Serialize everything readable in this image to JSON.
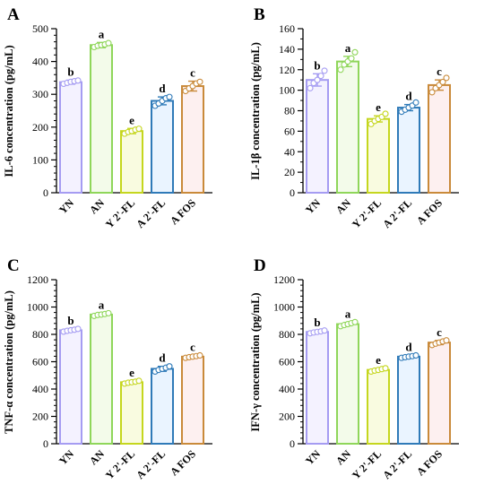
{
  "chart_data": [
    {
      "type": "bar",
      "panel": "A",
      "ylabel": "IL-6 concentration (pg/mL)",
      "categories": [
        "YN",
        "AN",
        "Y 2'-FL",
        "A 2'-FL",
        "A FOS"
      ],
      "values": [
        337,
        450,
        188,
        280,
        325
      ],
      "errors": [
        6,
        8,
        8,
        12,
        15
      ],
      "letters": [
        "b",
        "a",
        "e",
        "d",
        "c"
      ],
      "points": [
        [
          332,
          335,
          338,
          340,
          342
        ],
        [
          444,
          448,
          450,
          452,
          456
        ],
        [
          180,
          185,
          188,
          192,
          195
        ],
        [
          265,
          272,
          280,
          288,
          292
        ],
        [
          310,
          318,
          325,
          333,
          338
        ]
      ],
      "ylim": [
        0,
        500
      ],
      "yticks": [
        0,
        100,
        200,
        300,
        400,
        500
      ],
      "minor_step": 20,
      "colors": [
        "#a59cf2",
        "#8fd65a",
        "#c5d61e",
        "#2f7ab8",
        "#c98a3a"
      ],
      "fills": [
        "#f4f2ff",
        "#f3fbea",
        "#f9fbe0",
        "#eaf4ff",
        "#fdf0f0"
      ]
    },
    {
      "type": "bar",
      "panel": "B",
      "ylabel": "IL-1β concentration (pg/mL)",
      "categories": [
        "YN",
        "AN",
        "Y 2'-FL",
        "A 2'-FL",
        "A FOS"
      ],
      "values": [
        110,
        128,
        72,
        83,
        105
      ],
      "errors": [
        6,
        5,
        3,
        3,
        5
      ],
      "letters": [
        "b",
        "a",
        "e",
        "d",
        "c"
      ],
      "points": [
        [
          102,
          107,
          110,
          114,
          119
        ],
        [
          120,
          125,
          128,
          131,
          137
        ],
        [
          67,
          70,
          72,
          74,
          77
        ],
        [
          79,
          81,
          83,
          85,
          88
        ],
        [
          98,
          102,
          105,
          108,
          112
        ]
      ],
      "ylim": [
        0,
        160
      ],
      "yticks": [
        0,
        20,
        40,
        60,
        80,
        100,
        120,
        140,
        160
      ],
      "minor_step": 10,
      "colors": [
        "#a59cf2",
        "#8fd65a",
        "#c5d61e",
        "#2f7ab8",
        "#c98a3a"
      ],
      "fills": [
        "#f4f2ff",
        "#f3fbea",
        "#f9fbe0",
        "#eaf4ff",
        "#fdf0f0"
      ]
    },
    {
      "type": "bar",
      "panel": "C",
      "ylabel": "TNF-α concentration (pg/mL)",
      "categories": [
        "YN",
        "AN",
        "Y 2'-FL",
        "A 2'-FL",
        "A FOS"
      ],
      "values": [
        830,
        945,
        450,
        548,
        637
      ],
      "errors": [
        8,
        8,
        10,
        18,
        8
      ],
      "letters": [
        "b",
        "a",
        "e",
        "d",
        "c"
      ],
      "points": [
        [
          820,
          826,
          830,
          834,
          840
        ],
        [
          935,
          942,
          945,
          949,
          955
        ],
        [
          440,
          446,
          450,
          454,
          460
        ],
        [
          528,
          540,
          548,
          556,
          566
        ],
        [
          628,
          633,
          637,
          641,
          646
        ]
      ],
      "ylim": [
        0,
        1200
      ],
      "yticks": [
        0,
        200,
        400,
        600,
        800,
        1000,
        1200
      ],
      "minor_step": 40,
      "colors": [
        "#a59cf2",
        "#8fd65a",
        "#c5d61e",
        "#2f7ab8",
        "#c98a3a"
      ],
      "fills": [
        "#f4f2ff",
        "#f3fbea",
        "#f9fbe0",
        "#eaf4ff",
        "#fdf0f0"
      ]
    },
    {
      "type": "bar",
      "panel": "D",
      "ylabel": "IFN-γ concentration (pg/mL)",
      "categories": [
        "YN",
        "AN",
        "Y 2'-FL",
        "A 2'-FL",
        "A FOS"
      ],
      "values": [
        818,
        875,
        540,
        637,
        740
      ],
      "errors": [
        8,
        12,
        10,
        8,
        15
      ],
      "letters": [
        "b",
        "a",
        "e",
        "d",
        "c"
      ],
      "points": [
        [
          808,
          814,
          818,
          822,
          828
        ],
        [
          860,
          868,
          875,
          882,
          890
        ],
        [
          528,
          535,
          540,
          546,
          552
        ],
        [
          628,
          633,
          637,
          641,
          646
        ],
        [
          722,
          732,
          740,
          748,
          756
        ]
      ],
      "ylim": [
        0,
        1200
      ],
      "yticks": [
        0,
        200,
        400,
        600,
        800,
        1000,
        1200
      ],
      "minor_step": 40,
      "colors": [
        "#a59cf2",
        "#8fd65a",
        "#c5d61e",
        "#2f7ab8",
        "#c98a3a"
      ],
      "fills": [
        "#f4f2ff",
        "#f3fbea",
        "#f9fbe0",
        "#eaf4ff",
        "#fdf0f0"
      ]
    }
  ]
}
